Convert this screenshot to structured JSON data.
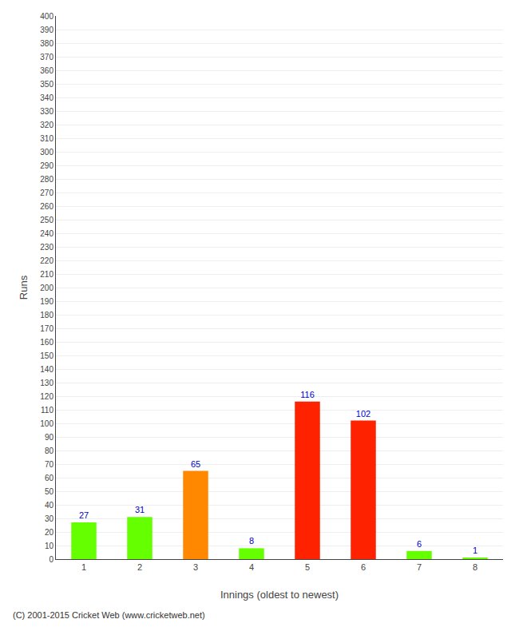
{
  "chart_data": {
    "type": "bar",
    "categories": [
      "1",
      "2",
      "3",
      "4",
      "5",
      "6",
      "7",
      "8"
    ],
    "values": [
      27,
      31,
      65,
      8,
      116,
      102,
      6,
      1
    ],
    "colors": [
      "#66ff00",
      "#66ff00",
      "#ff8800",
      "#66ff00",
      "#ff2200",
      "#ff2200",
      "#66ff00",
      "#66ff00"
    ],
    "xlabel": "Innings (oldest to newest)",
    "ylabel": "Runs",
    "ylim": [
      0,
      400
    ],
    "yticks": [
      0,
      10,
      20,
      30,
      40,
      50,
      60,
      70,
      80,
      90,
      100,
      110,
      120,
      130,
      140,
      150,
      160,
      170,
      180,
      190,
      200,
      210,
      220,
      230,
      240,
      250,
      260,
      270,
      280,
      290,
      300,
      310,
      320,
      330,
      340,
      350,
      360,
      370,
      380,
      390,
      400
    ],
    "grid": true,
    "data_labels": true,
    "annotations": [
      "(C) 2001-2015 Cricket Web (www.cricketweb.net)"
    ]
  }
}
